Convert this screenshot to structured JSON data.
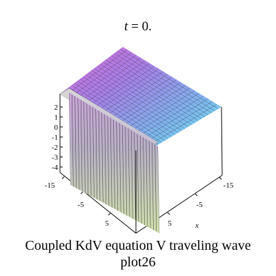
{
  "chart_data": {
    "type": "surface",
    "title_var": "t",
    "title_eq": " = 0.",
    "z_ticks": [
      "2",
      "1",
      "0",
      "-1",
      "-2",
      "-3",
      "-4"
    ],
    "y_ticks": [
      "-15",
      "-5",
      "5"
    ],
    "x_ticks": [
      "-15",
      "-5",
      "5"
    ],
    "x_label": "x",
    "grid": true
  },
  "caption": {
    "line1": "Coupled KdV equation V traveling wave",
    "line2": "plot26"
  }
}
